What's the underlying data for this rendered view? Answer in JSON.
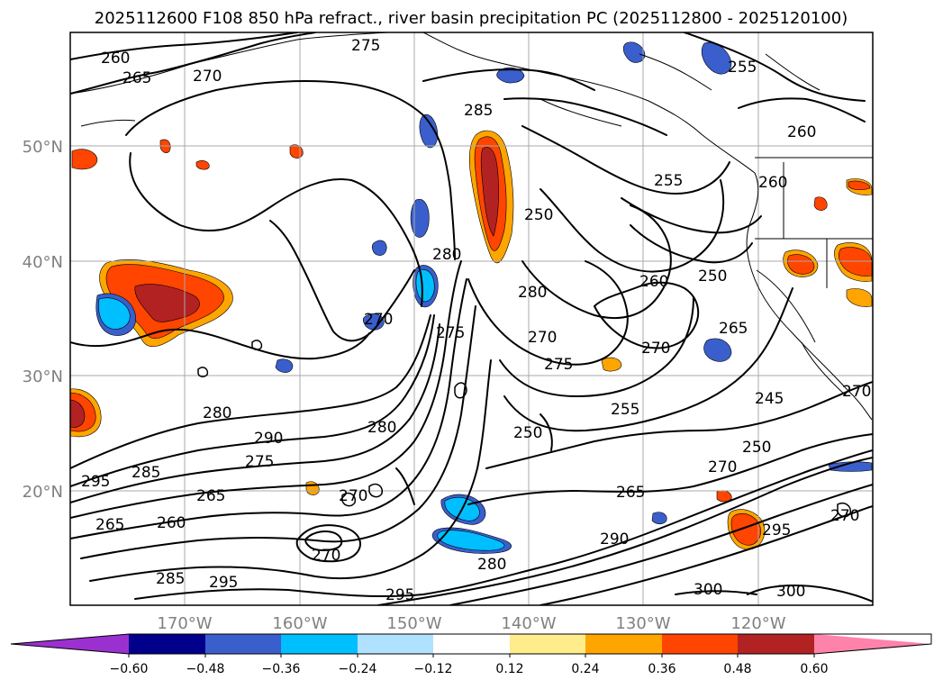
{
  "title": "2025112600 F108 850 hPa refract., river basin precipitation PC (2025112800 - 2025120100)",
  "lat_labels": [
    "50°N",
    "40°N",
    "30°N",
    "20°N"
  ],
  "lon_labels": [
    "170°W",
    "160°W",
    "150°W",
    "140°W",
    "130°W",
    "120°W"
  ],
  "contour_labels": [
    "260",
    "265",
    "270",
    "275",
    "285",
    "255",
    "260",
    "260",
    "255",
    "250",
    "280",
    "270",
    "270",
    "275",
    "260",
    "250",
    "265",
    "270",
    "275",
    "245",
    "280",
    "290",
    "275",
    "295",
    "285",
    "265",
    "260",
    "280",
    "265",
    "250",
    "255",
    "250",
    "270",
    "265",
    "290",
    "270",
    "270",
    "285",
    "295",
    "280",
    "295",
    "300",
    "300",
    "295",
    "270",
    "280",
    "270"
  ],
  "colorbar": {
    "ticks": [
      "−0.60",
      "−0.48",
      "−0.36",
      "−0.24",
      "−0.12",
      "0.12",
      "0.24",
      "0.36",
      "0.48",
      "0.60"
    ],
    "colors": [
      "#9b30d0",
      "#00008b",
      "#3a5fcd",
      "#00bfff",
      "#b0e2ff",
      "#ffffff",
      "#ffec8b",
      "#ffa500",
      "#ff4500",
      "#b22222",
      "#ff82ab"
    ]
  },
  "shading_colors": {
    "neg_strong": "#3a5fcd",
    "neg_med": "#00bfff",
    "neg_weak": "#b0e2ff",
    "pos_weak": "#ffec8b",
    "pos_med": "#ffa500",
    "pos_strong": "#ff4500",
    "pos_vstrong": "#b22222"
  }
}
